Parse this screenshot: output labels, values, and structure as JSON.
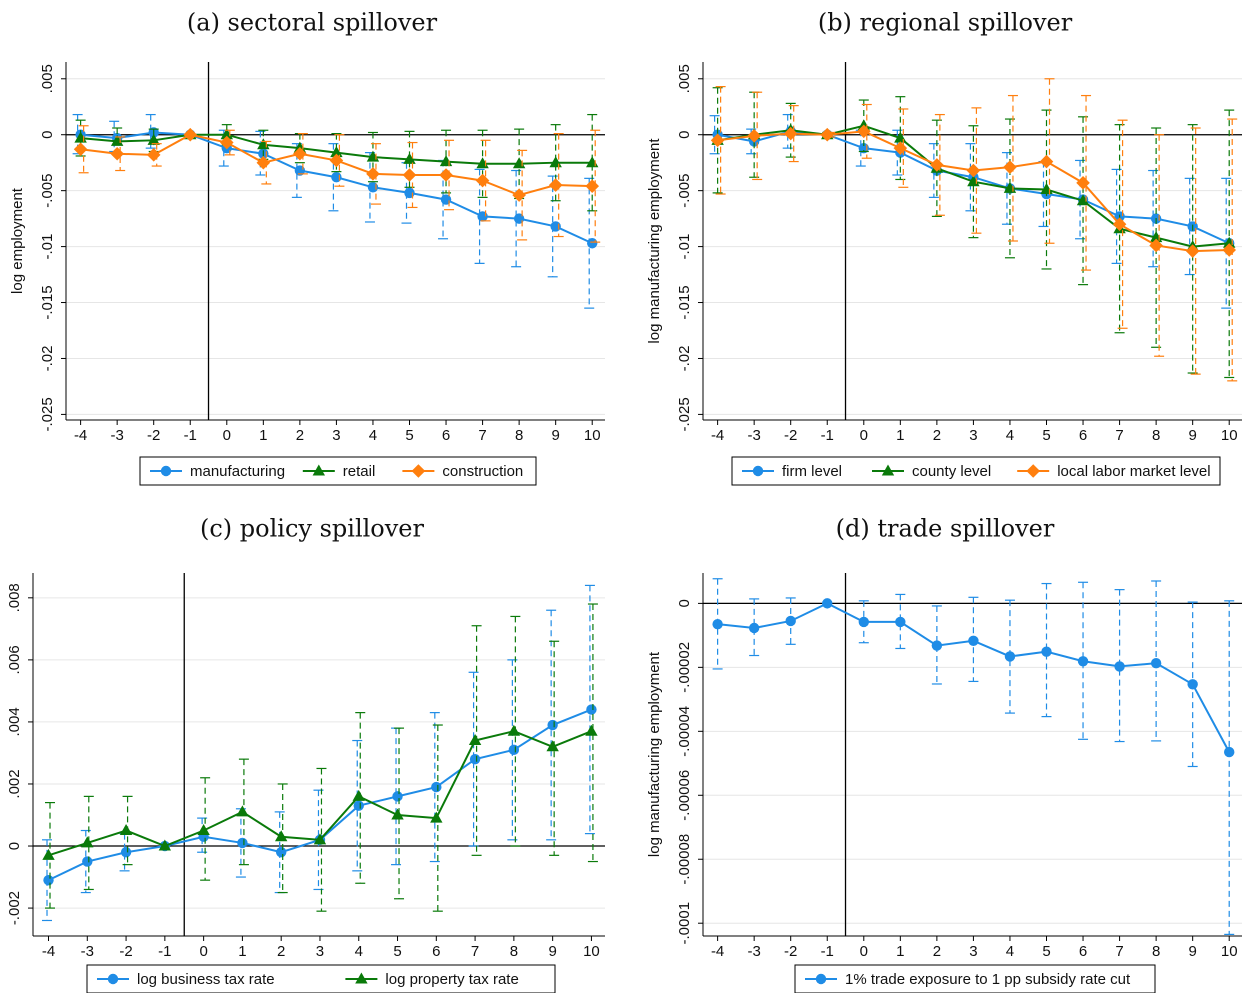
{
  "chart_data": [
    {
      "type": "line",
      "title": "(a) sectoral spillover",
      "xlabel": "",
      "ylabel": "log employment",
      "x": [
        -4,
        -3,
        -2,
        -1,
        0,
        1,
        2,
        3,
        4,
        5,
        6,
        7,
        8,
        9,
        10
      ],
      "xticks": [
        "-4",
        "-3",
        "-2",
        "-1",
        "0",
        "1",
        "2",
        "3",
        "4",
        "5",
        "6",
        "7",
        "8",
        "9",
        "10"
      ],
      "ylim": [
        -0.0255,
        0.0065
      ],
      "yticks": [
        0.005,
        0,
        -0.005,
        -0.01,
        -0.015,
        -0.02,
        -0.025
      ],
      "ytick_labels": [
        ".005",
        "0",
        "-.005",
        "-.01",
        "-.015",
        "-.02",
        "-.025"
      ],
      "event_line_x": -0.5,
      "grid": true,
      "legend_position": "bottom",
      "series": [
        {
          "name": "manufacturing",
          "marker": "circle",
          "color": "#1f8ce6",
          "values": [
            0,
            -0.0003,
            0.0002,
            0,
            -0.0012,
            -0.0017,
            -0.0032,
            -0.0038,
            -0.0047,
            -0.0052,
            -0.0058,
            -0.0073,
            -0.0075,
            -0.0082,
            -0.0097
          ],
          "ci_low": [
            -0.0017,
            -0.0015,
            -0.0012,
            0,
            -0.0028,
            -0.0036,
            -0.0056,
            -0.0068,
            -0.0078,
            -0.0079,
            -0.0093,
            -0.0115,
            -0.0118,
            -0.0127,
            -0.0155
          ],
          "ci_high": [
            0.0018,
            0.0012,
            0.0018,
            0,
            0.0004,
            0.0003,
            -0.0008,
            -0.0008,
            -0.0016,
            -0.0025,
            -0.0023,
            -0.0031,
            -0.0032,
            -0.0037,
            -0.0039
          ]
        },
        {
          "name": "retail",
          "marker": "triangle",
          "color": "#0a7a0a",
          "values": [
            -0.0003,
            -0.0006,
            -0.0005,
            0,
            0,
            -0.0009,
            -0.0012,
            -0.0016,
            -0.002,
            -0.0022,
            -0.0024,
            -0.0026,
            -0.0026,
            -0.0025,
            -0.0025
          ],
          "ci_low": [
            -0.0019,
            -0.0018,
            -0.0015,
            0,
            -0.0009,
            -0.0022,
            -0.0025,
            -0.0033,
            -0.0042,
            -0.0047,
            -0.0052,
            -0.0056,
            -0.0057,
            -0.0059,
            -0.0068
          ],
          "ci_high": [
            0.0013,
            0.0006,
            0.0005,
            0,
            0.0009,
            0.0004,
            0.0001,
            0.0001,
            0.0002,
            0.0003,
            0.0004,
            0.0004,
            0.0005,
            0.0009,
            0.0018
          ]
        },
        {
          "name": "construction",
          "marker": "diamond",
          "color": "#ff7f0e",
          "values": [
            -0.0013,
            -0.0017,
            -0.0018,
            0,
            -0.0007,
            -0.0025,
            -0.0017,
            -0.0023,
            -0.0035,
            -0.0036,
            -0.0036,
            -0.0041,
            -0.0054,
            -0.0045,
            -0.0046
          ],
          "ci_low": [
            -0.0034,
            -0.0032,
            -0.0028,
            0,
            -0.0018,
            -0.0044,
            -0.0035,
            -0.0046,
            -0.0062,
            -0.0065,
            -0.0067,
            -0.0077,
            -0.0094,
            -0.0091,
            -0.0096
          ],
          "ci_high": [
            0.0008,
            -0.0002,
            -0.0008,
            0,
            0.0004,
            -0.0006,
            0.0001,
            0,
            -0.0008,
            -0.0007,
            -0.0005,
            -0.0005,
            -0.0014,
            0.0001,
            0.0004
          ]
        }
      ]
    },
    {
      "type": "line",
      "title": "(b) regional spillover",
      "xlabel": "",
      "ylabel": "log manufacturing employment",
      "x": [
        -4,
        -3,
        -2,
        -1,
        0,
        1,
        2,
        3,
        4,
        5,
        6,
        7,
        8,
        9,
        10
      ],
      "xticks": [
        "-4",
        "-3",
        "-2",
        "-1",
        "0",
        "1",
        "2",
        "3",
        "4",
        "5",
        "6",
        "7",
        "8",
        "9",
        "10"
      ],
      "ylim": [
        -0.0255,
        0.0065
      ],
      "yticks": [
        0.005,
        0,
        -0.005,
        -0.01,
        -0.015,
        -0.02,
        -0.025
      ],
      "ytick_labels": [
        ".005",
        "0",
        "-.005",
        "-.01",
        "-.015",
        "-.02",
        "-.025"
      ],
      "event_line_x": -0.5,
      "grid": true,
      "legend_position": "bottom",
      "series": [
        {
          "name": "firm level",
          "marker": "circle",
          "color": "#1f8ce6",
          "values": [
            0,
            -0.0006,
            0.0003,
            0,
            -0.0012,
            -0.0016,
            -0.0032,
            -0.0038,
            -0.0048,
            -0.0053,
            -0.0058,
            -0.0073,
            -0.0075,
            -0.0082,
            -0.0097
          ],
          "ci_low": [
            -0.0017,
            -0.0017,
            -0.0012,
            0,
            -0.0028,
            -0.0036,
            -0.0056,
            -0.0068,
            -0.008,
            -0.0082,
            -0.0093,
            -0.0115,
            -0.0118,
            -0.0125,
            -0.0155
          ],
          "ci_high": [
            0.0017,
            0.0005,
            0.0018,
            0,
            0.0004,
            0.0004,
            -0.0008,
            -0.0008,
            -0.0016,
            -0.0024,
            -0.0023,
            -0.0031,
            -0.0032,
            -0.0039,
            -0.0039
          ]
        },
        {
          "name": "county level",
          "marker": "triangle",
          "color": "#0a7a0a",
          "values": [
            -0.0005,
            0,
            0.0004,
            0,
            0.0008,
            -0.0003,
            -0.003,
            -0.0042,
            -0.0048,
            -0.0049,
            -0.0059,
            -0.0084,
            -0.0092,
            -0.01,
            -0.0097
          ],
          "ci_low": [
            -0.0052,
            -0.0038,
            -0.002,
            -0.0002,
            -0.0015,
            -0.004,
            -0.0073,
            -0.0092,
            -0.011,
            -0.012,
            -0.0134,
            -0.0177,
            -0.019,
            -0.0213,
            -0.0217
          ],
          "ci_high": [
            0.0042,
            0.0038,
            0.0028,
            0.0002,
            0.0031,
            0.0034,
            0.0013,
            0.0008,
            0.0014,
            0.0022,
            0.0016,
            0.0009,
            0.0006,
            0.0009,
            0.0022
          ]
        },
        {
          "name": "local labor market level",
          "marker": "diamond",
          "color": "#ff7f0e",
          "values": [
            -0.0005,
            -0.0001,
            0.0001,
            0,
            0.0003,
            -0.0012,
            -0.0027,
            -0.0032,
            -0.0029,
            -0.0024,
            -0.0043,
            -0.008,
            -0.0099,
            -0.0104,
            -0.0103
          ],
          "ci_low": [
            -0.0053,
            -0.004,
            -0.0024,
            -0.0002,
            -0.0021,
            -0.0047,
            -0.0072,
            -0.0088,
            -0.0095,
            -0.0097,
            -0.0121,
            -0.0173,
            -0.0198,
            -0.0214,
            -0.022
          ],
          "ci_high": [
            0.0043,
            0.0038,
            0.0026,
            0.0002,
            0.0027,
            0.0023,
            0.0018,
            0.0024,
            0.0035,
            0.005,
            0.0035,
            0.0013,
            0.0,
            0.0006,
            0.0014
          ]
        }
      ]
    },
    {
      "type": "line",
      "title": "(c) policy spillover",
      "xlabel": "",
      "ylabel": "",
      "x": [
        -4,
        -3,
        -2,
        -1,
        0,
        1,
        2,
        3,
        4,
        5,
        6,
        7,
        8,
        9,
        10
      ],
      "xticks": [
        "-4",
        "-3",
        "-2",
        "-1",
        "0",
        "1",
        "2",
        "3",
        "4",
        "5",
        "6",
        "7",
        "8",
        "9",
        "10"
      ],
      "ylim": [
        -0.0029,
        0.0088
      ],
      "yticks": [
        -0.002,
        0,
        0.002,
        0.004,
        0.006,
        0.008
      ],
      "ytick_labels": [
        "-.002",
        "0",
        ".002",
        ".004",
        ".006",
        ".008"
      ],
      "event_line_x": -0.5,
      "grid": true,
      "legend_position": "bottom",
      "series": [
        {
          "name": "log business tax rate",
          "marker": "circle",
          "color": "#1f8ce6",
          "values": [
            -0.0011,
            -0.0005,
            -0.0002,
            0,
            0.0003,
            0.0001,
            -0.0002,
            0.0002,
            0.0013,
            0.0016,
            0.0019,
            0.0028,
            0.0031,
            0.0039,
            0.0044
          ],
          "ci_low": [
            -0.0024,
            -0.0015,
            -0.0008,
            0,
            -0.0002,
            -0.001,
            -0.0015,
            -0.0014,
            -0.0008,
            -0.0006,
            -0.0005,
            0.0,
            0.0002,
            0.0002,
            0.0004
          ],
          "ci_high": [
            0.0002,
            0.0005,
            0.0004,
            0,
            0.0009,
            0.0012,
            0.0011,
            0.0018,
            0.0034,
            0.0038,
            0.0043,
            0.0056,
            0.006,
            0.0076,
            0.0084
          ]
        },
        {
          "name": "log property tax rate",
          "marker": "triangle",
          "color": "#0a7a0a",
          "values": [
            -0.0003,
            0.0001,
            0.0005,
            0,
            0.0005,
            0.0011,
            0.0003,
            0.0002,
            0.0016,
            0.001,
            0.0009,
            0.0034,
            0.0037,
            0.0032,
            0.0037
          ],
          "ci_low": [
            -0.002,
            -0.0014,
            -0.0006,
            0,
            -0.0011,
            -0.0006,
            -0.0015,
            -0.0021,
            -0.0012,
            -0.0017,
            -0.0021,
            -0.0003,
            0.0,
            -0.0003,
            -0.0005
          ],
          "ci_high": [
            0.0014,
            0.0016,
            0.0016,
            0,
            0.0022,
            0.0028,
            0.002,
            0.0025,
            0.0043,
            0.0038,
            0.0039,
            0.0071,
            0.0074,
            0.0066,
            0.0078
          ]
        }
      ]
    },
    {
      "type": "line",
      "title": "(d) trade spillover",
      "xlabel": "",
      "ylabel": "log manufacturing employment",
      "x": [
        -4,
        -3,
        -2,
        -1,
        0,
        1,
        2,
        3,
        4,
        5,
        6,
        7,
        8,
        9,
        10
      ],
      "xticks": [
        "-4",
        "-3",
        "-2",
        "-1",
        "0",
        "1",
        "2",
        "3",
        "4",
        "5",
        "6",
        "7",
        "8",
        "9",
        "10"
      ],
      "ylim": [
        -0.000104,
        9.5e-06
      ],
      "yticks": [
        0,
        -2e-05,
        -4e-05,
        -6e-05,
        -8e-05,
        -0.0001
      ],
      "ytick_labels": [
        "0",
        "-.00002",
        "-.00004",
        "-.00006",
        "-.00008",
        "-.0001"
      ],
      "event_line_x": -0.5,
      "grid": true,
      "legend_position": "bottom",
      "series": [
        {
          "name": "1% trade exposure to 1 pp subsidy rate cut",
          "marker": "circle",
          "color": "#1f8ce6",
          "values": [
            -6.5e-06,
            -7.7e-06,
            -5.5e-06,
            0,
            -5.8e-06,
            -5.8e-06,
            -1.32e-05,
            -1.17e-05,
            -1.66e-05,
            -1.51e-05,
            -1.81e-05,
            -1.97e-05,
            -1.87e-05,
            -2.53e-05,
            -4.65e-05
          ],
          "ci_low": [
            -2.05e-05,
            -1.63e-05,
            -1.28e-05,
            0,
            -1.23e-05,
            -1.41e-05,
            -2.52e-05,
            -2.44e-05,
            -3.43e-05,
            -3.54e-05,
            -4.25e-05,
            -4.32e-05,
            -4.3e-05,
            -5.1e-05,
            -0.0001035
          ],
          "ci_high": [
            7.7e-06,
            1.4e-06,
            1.7e-06,
            0,
            8e-07,
            2.8e-06,
            -8e-07,
            1.9e-06,
            1e-06,
            6.2e-06,
            6.6e-06,
            4.3e-06,
            7e-06,
            4e-07,
            8e-07
          ]
        }
      ]
    }
  ]
}
